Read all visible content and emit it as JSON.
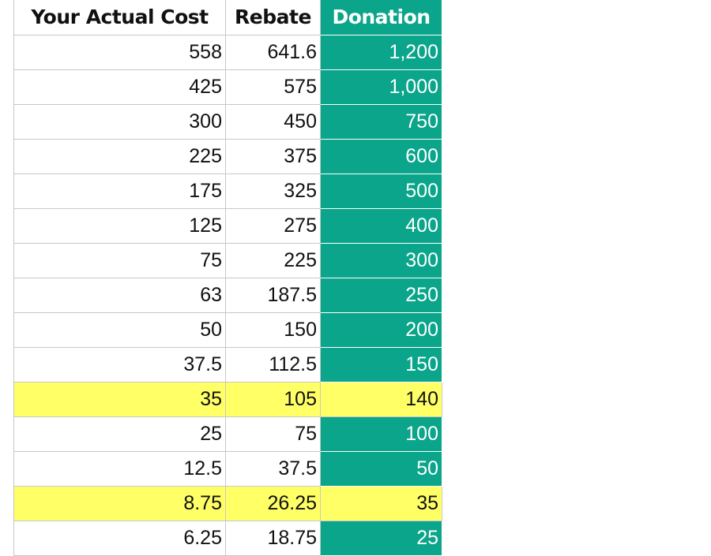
{
  "headers": {
    "actual_cost": "Your Actual Cost",
    "rebate": "Rebate",
    "donation": "Donation"
  },
  "rows": [
    {
      "actual_cost": "558",
      "rebate": "641.6",
      "donation": "1,200",
      "highlight": false
    },
    {
      "actual_cost": "425",
      "rebate": "575",
      "donation": "1,000",
      "highlight": false
    },
    {
      "actual_cost": "300",
      "rebate": "450",
      "donation": "750",
      "highlight": false
    },
    {
      "actual_cost": "225",
      "rebate": "375",
      "donation": "600",
      "highlight": false
    },
    {
      "actual_cost": "175",
      "rebate": "325",
      "donation": "500",
      "highlight": false
    },
    {
      "actual_cost": "125",
      "rebate": "275",
      "donation": "400",
      "highlight": false
    },
    {
      "actual_cost": "75",
      "rebate": "225",
      "donation": "300",
      "highlight": false
    },
    {
      "actual_cost": "63",
      "rebate": "187.5",
      "donation": "250",
      "highlight": false
    },
    {
      "actual_cost": "50",
      "rebate": "150",
      "donation": "200",
      "highlight": false
    },
    {
      "actual_cost": "37.5",
      "rebate": "112.5",
      "donation": "150",
      "highlight": false
    },
    {
      "actual_cost": "35",
      "rebate": "105",
      "donation": "140",
      "highlight": true
    },
    {
      "actual_cost": "25",
      "rebate": "75",
      "donation": "100",
      "highlight": false
    },
    {
      "actual_cost": "12.5",
      "rebate": "37.5",
      "donation": "50",
      "highlight": false
    },
    {
      "actual_cost": "8.75",
      "rebate": "26.25",
      "donation": "35",
      "highlight": true
    },
    {
      "actual_cost": "6.25",
      "rebate": "18.75",
      "donation": "25",
      "highlight": false
    }
  ],
  "colors": {
    "donation_column": "#0aa58a",
    "highlight_row": "#ffff66",
    "grid": "#c8c8c8"
  }
}
